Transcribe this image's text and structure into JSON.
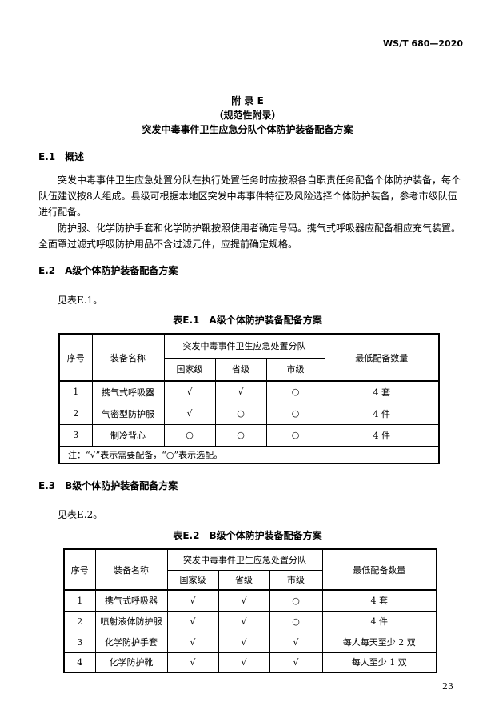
{
  "header": {
    "standard": "WS/T 680—2020"
  },
  "appendix": {
    "title": "附 录 E",
    "type": "（规范性附录）",
    "name": "突发中毒事件卫生应急分队个体防护装备配备方案"
  },
  "s1": {
    "heading": "E.1　概述",
    "p1": "突发中毒事件卫生应急处置分队在执行处置任务时应按照各自职责任务配备个体防护装备，每个队伍建议按8人组成。县级可根据本地区突发中毒事件特征及风险选择个体防护装备，参考市级队伍进行配备。",
    "p2": "防护服、化学防护手套和化学防护靴按照使用者确定号码。携气式呼吸器应配备相应充气装置。全面罩过滤式呼吸防护用品不含过滤元件，应提前确定规格。"
  },
  "s2": {
    "heading": "E.2　A级个体防护装备配备方案",
    "ref": "见表E.1。",
    "table_title": "表E.1　A级个体防护装备配备方案",
    "table": {
      "h_no": "序号",
      "h_name": "装备名称",
      "h_group": "突发中毒事件卫生应急处置分队",
      "h_nat": "国家级",
      "h_prov": "省级",
      "h_city": "市级",
      "h_qty": "最低配备数量",
      "rows": [
        [
          "1",
          "携气式呼吸器",
          "√",
          "√",
          "○",
          "4 套"
        ],
        [
          "2",
          "气密型防护服",
          "√",
          "○",
          "○",
          "4 件"
        ],
        [
          "3",
          "制冷背心",
          "○",
          "○",
          "○",
          "4 件"
        ]
      ],
      "note": "注：“√”表示需要配备，“○”表示选配。"
    }
  },
  "s3": {
    "heading": "E.3　B级个体防护装备配备方案",
    "ref": "见表E.2。",
    "table_title": "表E.2　B级个体防护装备配备方案",
    "table": {
      "h_no": "序号",
      "h_name": "装备名称",
      "h_group": "突发中毒事件卫生应急处置分队",
      "h_nat": "国家级",
      "h_prov": "省级",
      "h_city": "市级",
      "h_qty": "最低配备数量",
      "rows": [
        [
          "1",
          "携气式呼吸器",
          "√",
          "√",
          "○",
          "4 套"
        ],
        [
          "2",
          "喷射液体防护服",
          "√",
          "√",
          "○",
          "4 件"
        ],
        [
          "3",
          "化学防护手套",
          "√",
          "√",
          "√",
          "每人每天至少 2 双"
        ],
        [
          "4",
          "化学防护靴",
          "√",
          "√",
          "√",
          "每人至少 1 双"
        ]
      ]
    }
  },
  "footer": {
    "page": "23"
  }
}
